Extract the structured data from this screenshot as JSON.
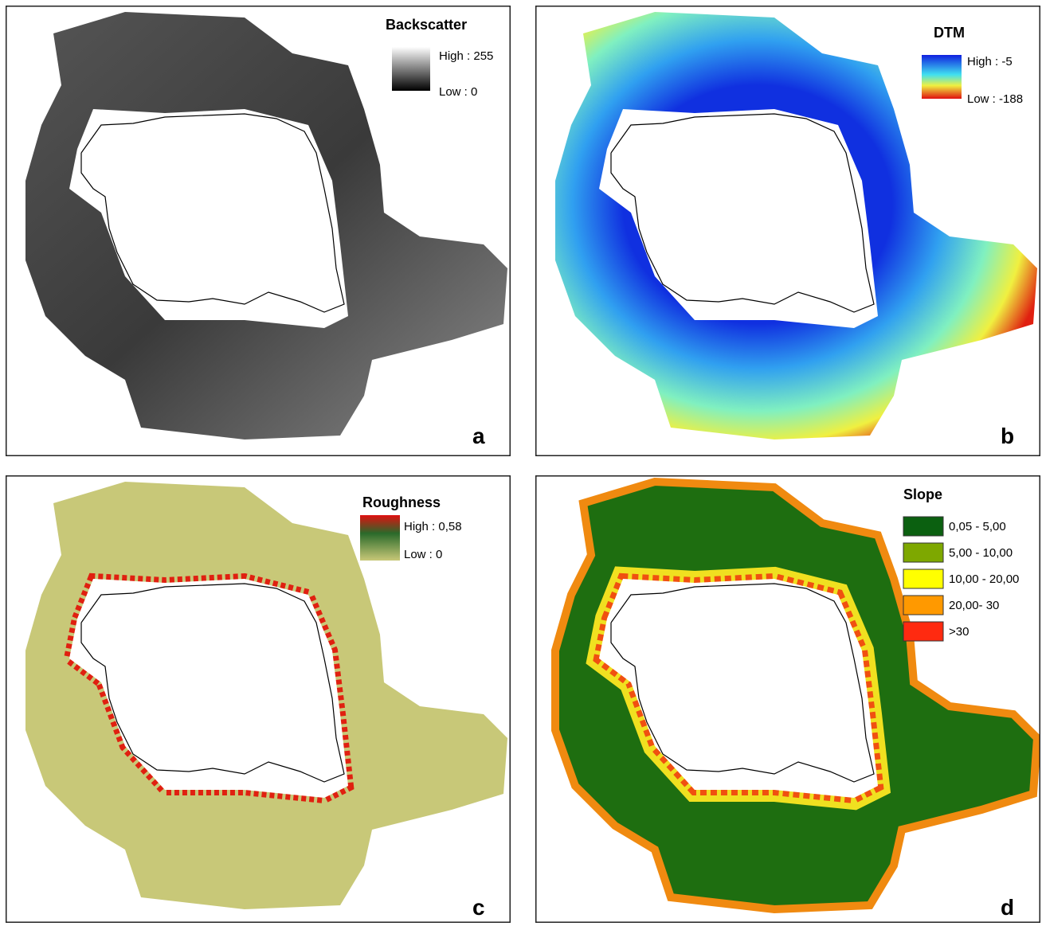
{
  "panels": [
    {
      "title": "Backscatter",
      "legend": [
        "High : 255",
        "Low : 0"
      ],
      "letter": "a"
    },
    {
      "title": "DTM",
      "legend": [
        "High : -5",
        "Low : -188"
      ],
      "letter": "b"
    },
    {
      "title": "Roughness",
      "legend": [
        "High : 0,58",
        "Low : 0"
      ],
      "letter": "c"
    },
    {
      "title": "Slope",
      "legend": [
        "0,05 - 5,00",
        "5,00 - 10,00",
        "10,00 - 20,00",
        "20,00- 30",
        ">30"
      ],
      "letter": "d"
    }
  ]
}
